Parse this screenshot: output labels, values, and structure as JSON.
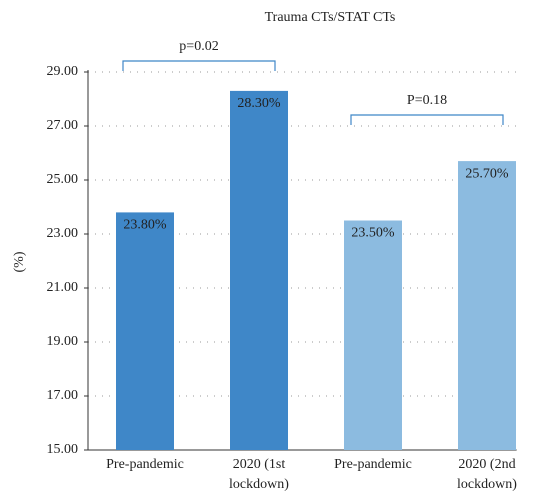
{
  "chart_data": {
    "type": "bar",
    "title": "Trauma CTs/STAT CTs",
    "y_label": "(%)",
    "categories": [
      "Pre-pandemic",
      "2020 (1st lockdown)",
      "Pre-pandemic",
      "2020 (2nd lockdown)"
    ],
    "values": [
      23.8,
      28.3,
      23.5,
      25.7
    ],
    "value_labels": [
      "23.80%",
      "28.30%",
      "23.50%",
      "25.70%"
    ],
    "colors": [
      "#3f87c8",
      "#3f87c8",
      "#8cbbe0",
      "#8cbbe0"
    ],
    "ylim": [
      15,
      29
    ],
    "yticks": [
      {
        "value": 15,
        "label": "15.00"
      },
      {
        "value": 17,
        "label": "17.00"
      },
      {
        "value": 19,
        "label": "19.00"
      },
      {
        "value": 21,
        "label": "21.00"
      },
      {
        "value": 23,
        "label": "23.00"
      },
      {
        "value": 25,
        "label": "25.00"
      },
      {
        "value": 27,
        "label": "27.00"
      },
      {
        "value": 29,
        "label": "29.00"
      }
    ],
    "grid": true,
    "annotations": [
      "p=0.02",
      "P=0.18"
    ]
  }
}
